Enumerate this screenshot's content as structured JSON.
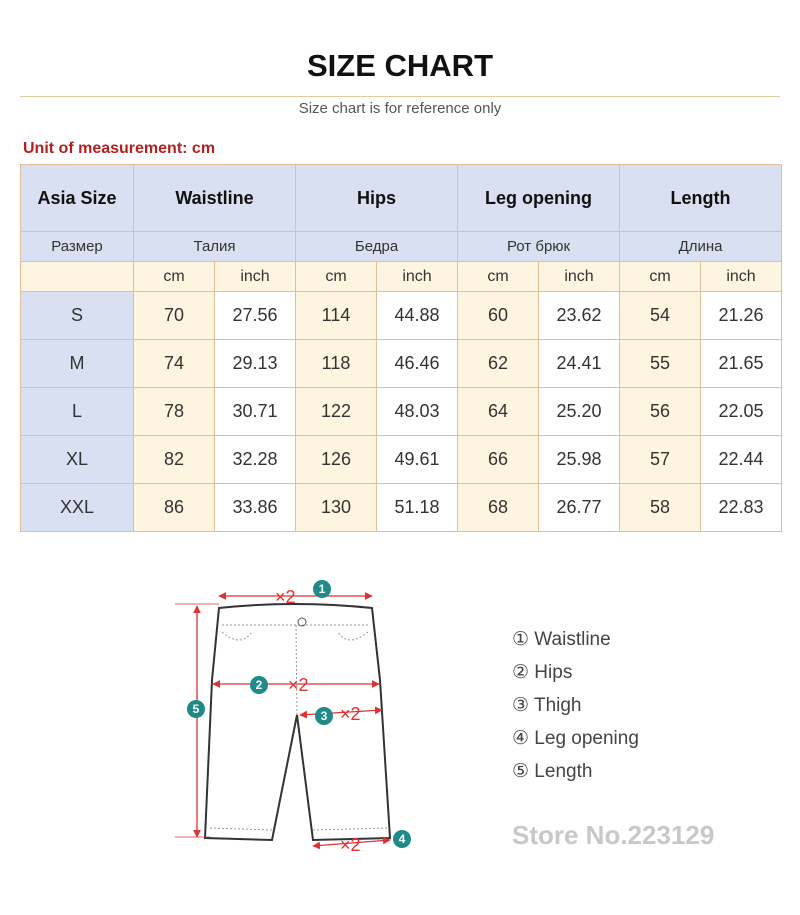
{
  "title": "SIZE CHART",
  "subtitle": "Size chart is for reference only",
  "unit_note": "Unit of measurement: cm",
  "headers": [
    "Asia Size",
    "Waistline",
    "Hips",
    "Leg opening",
    "Length"
  ],
  "headers_ru": [
    "Размер",
    "Талия",
    "Бедра",
    "Рот брюк",
    "Длина"
  ],
  "units": [
    "cm",
    "inch"
  ],
  "rows": [
    [
      "S",
      "70",
      "27.56",
      "114",
      "44.88",
      "60",
      "23.62",
      "54",
      "21.26"
    ],
    [
      "M",
      "74",
      "29.13",
      "118",
      "46.46",
      "62",
      "24.41",
      "55",
      "21.65"
    ],
    [
      "L",
      "78",
      "30.71",
      "122",
      "48.03",
      "64",
      "25.20",
      "56",
      "22.05"
    ],
    [
      "XL",
      "82",
      "32.28",
      "126",
      "49.61",
      "66",
      "25.98",
      "57",
      "22.44"
    ],
    [
      "XXL",
      "86",
      "33.86",
      "130",
      "51.18",
      "68",
      "26.77",
      "58",
      "22.83"
    ]
  ],
  "watermark": "Store No.223129",
  "diagram": {
    "multiplier": "×2",
    "markers": [
      "1",
      "2",
      "3",
      "4",
      "5"
    ]
  },
  "legend": [
    "① Waistline",
    "② Hips",
    "③ Thigh",
    "④ Leg opening",
    "⑤ Length"
  ],
  "colors": {
    "header": "#d9e0f1",
    "cream": "#fdf5df",
    "border": "#e2bf96",
    "accent": "#b22222",
    "marker": "#1f8a8a"
  }
}
